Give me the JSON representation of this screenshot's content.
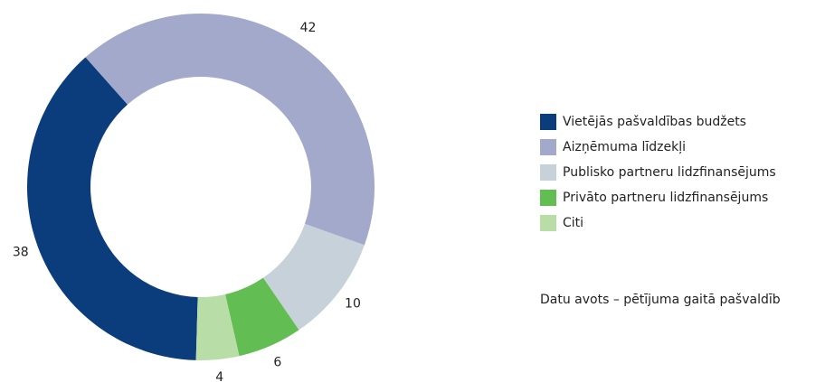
{
  "chart_data": {
    "type": "donut",
    "series": [
      {
        "name": "Vietējās pašvaldības budžets",
        "color": "#0b3d7c",
        "values": [
          38
        ]
      },
      {
        "name": "Aizņēmuma līdzekļi",
        "color": "#a3a9cb",
        "values": [
          42
        ]
      },
      {
        "name": "Publisko partneru lidzfinansējums",
        "color": "#c7d1d9",
        "values": [
          10
        ]
      },
      {
        "name": "Privāto partneru lidzfinansējums",
        "color": "#62bd52",
        "values": [
          6
        ]
      },
      {
        "name": "Citi",
        "color": "#b9dda6",
        "values": [
          4
        ]
      }
    ],
    "source": "Datu avots – pētījuma gaitā pašvaldīb"
  }
}
